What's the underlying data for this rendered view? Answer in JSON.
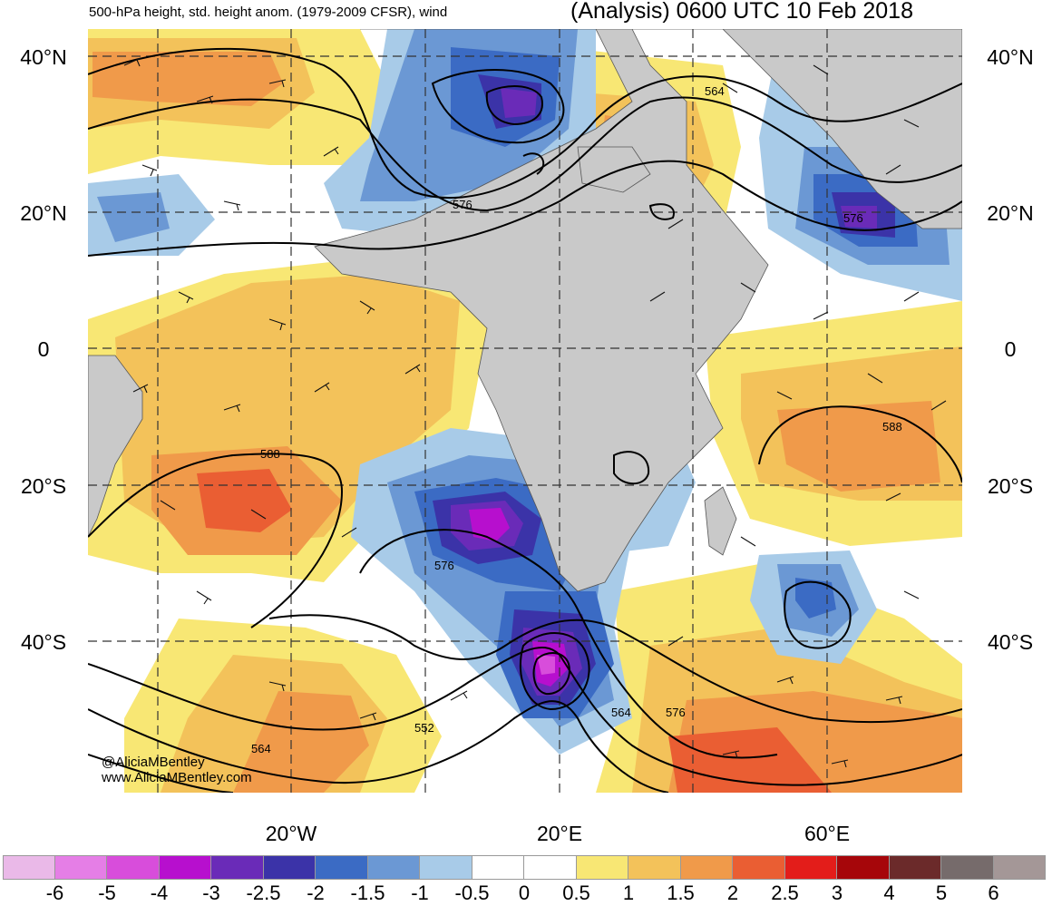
{
  "header": {
    "left_title": "500-hPa height, std. height anom. (1979-2009 CFSR), wind",
    "right_title": "(Analysis) 0600 UTC 10 Feb 2018"
  },
  "axes": {
    "lat_labels": [
      "40°N",
      "20°N",
      "0",
      "20°S",
      "40°S"
    ],
    "lon_labels": [
      "20°W",
      "20°E",
      "60°E"
    ]
  },
  "contour_labels": [
    "564",
    "576",
    "576",
    "588",
    "588",
    "576",
    "564",
    "576",
    "552",
    "564"
  ],
  "credit": {
    "line1": "@AliciaMBentley",
    "line2": "www.AliciaMBentley.com"
  },
  "colorbar": {
    "tick_labels": [
      "-6",
      "-5",
      "-4",
      "-3",
      "-2.5",
      "-2",
      "-1.5",
      "-1",
      "-0.5",
      "0",
      "0.5",
      "1",
      "1.5",
      "2",
      "2.5",
      "3",
      "4",
      "5",
      "6"
    ],
    "colors": [
      "#eab9e8",
      "#e57ee6",
      "#d84ddb",
      "#b70fce",
      "#6a2bb8",
      "#3b33a8",
      "#3b6bc4",
      "#6b98d4",
      "#a8cbe8",
      "#ffffff",
      "#ffffff",
      "#f8e774",
      "#f3c25a",
      "#f09a4a",
      "#ea5e33",
      "#e31d1a",
      "#a6060a",
      "#6b2a2a",
      "#766b6b",
      "#a49797"
    ]
  }
}
